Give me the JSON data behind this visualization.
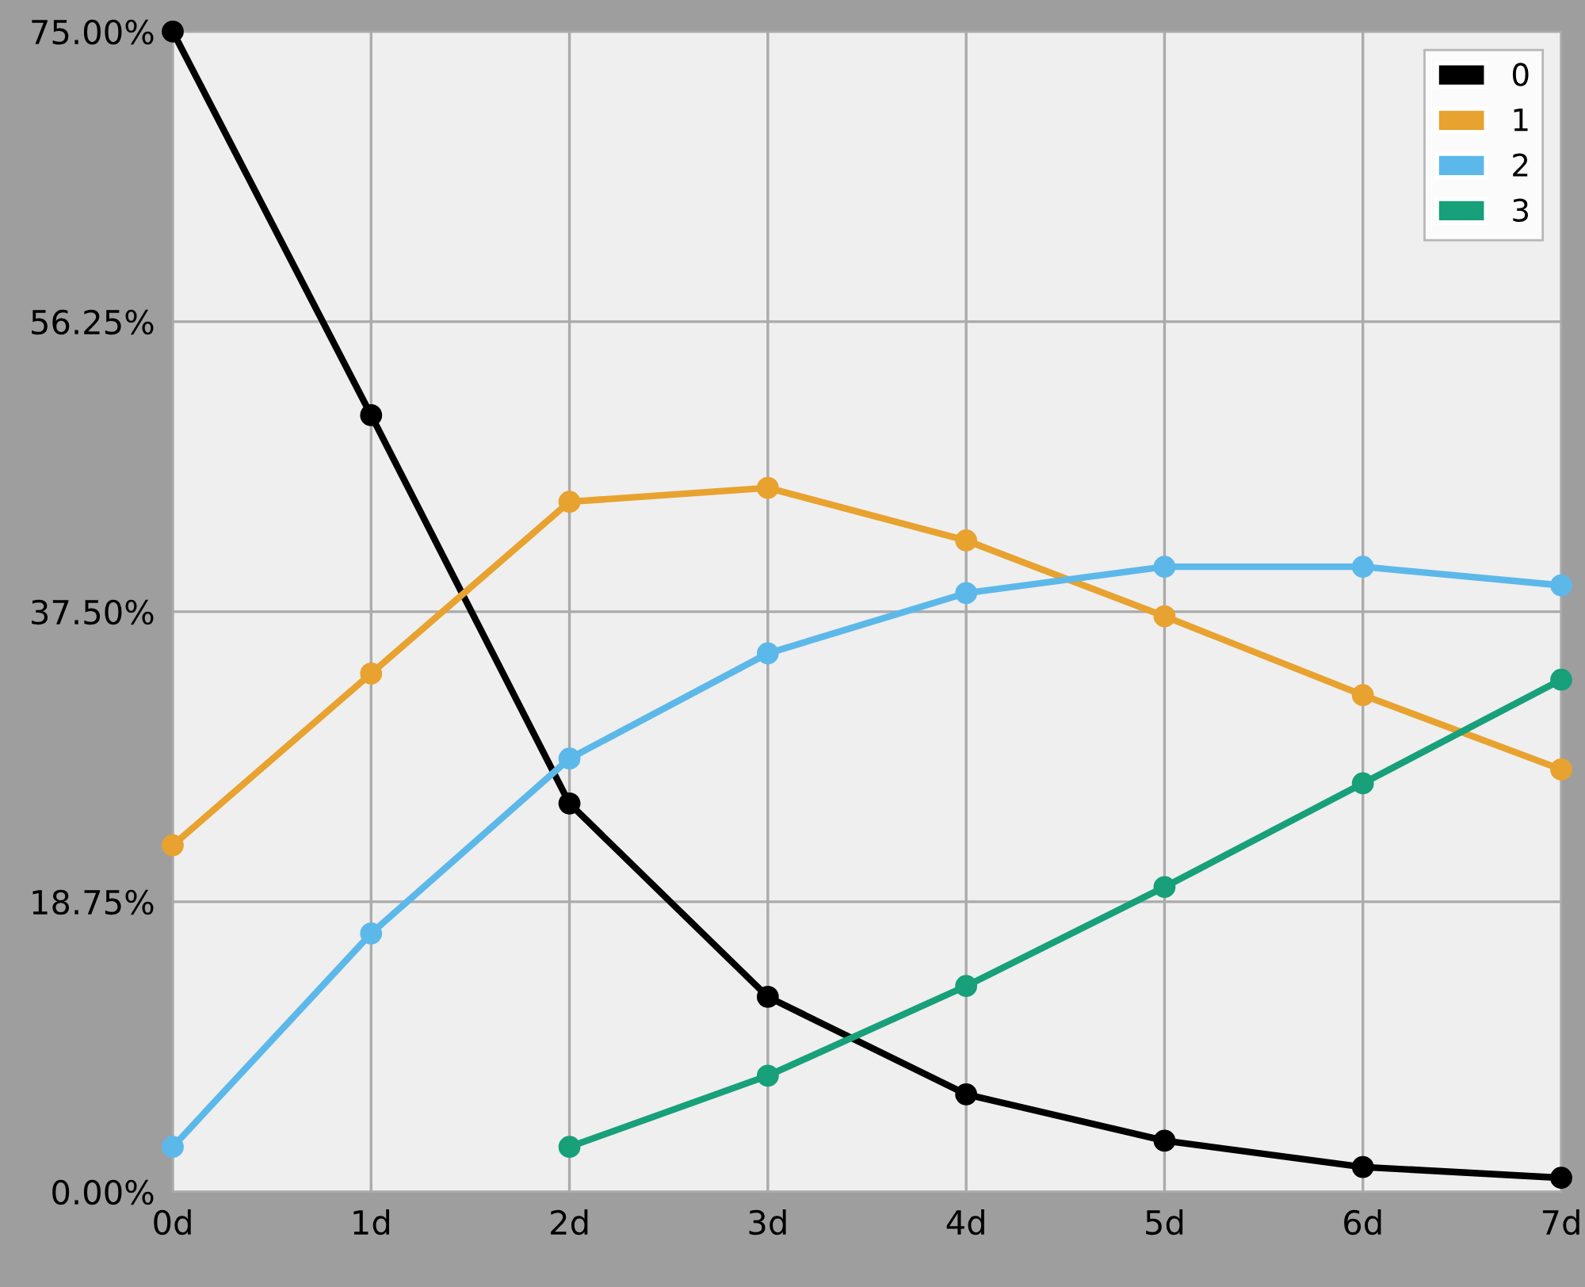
{
  "chart_data": {
    "type": "line",
    "categories": [
      "0d",
      "1d",
      "2d",
      "3d",
      "4d",
      "5d",
      "6d",
      "7d"
    ],
    "series": [
      {
        "name": "0",
        "color": "#000000",
        "values": [
          75,
          50.2,
          25.1,
          12.6,
          6.3,
          3.3,
          1.6,
          0.9
        ]
      },
      {
        "name": "1",
        "color": "#e8a22f",
        "values": [
          22.4,
          33.5,
          44.6,
          45.5,
          42.1,
          37.2,
          32.1,
          27.3
        ]
      },
      {
        "name": "2",
        "color": "#5db8ea",
        "values": [
          2.9,
          16.7,
          28.0,
          34.8,
          38.7,
          40.4,
          40.4,
          39.2
        ]
      },
      {
        "name": "3",
        "color": "#17a07a",
        "values": [
          null,
          null,
          2.9,
          7.5,
          13.3,
          19.7,
          26.4,
          33.1
        ]
      }
    ],
    "ylim": [
      0,
      75
    ],
    "yticks": [
      {
        "value": 0,
        "label": "0.00%"
      },
      {
        "value": 18.75,
        "label": "18.75%"
      },
      {
        "value": 37.5,
        "label": "37.50%"
      },
      {
        "value": 56.25,
        "label": "56.25%"
      },
      {
        "value": 75,
        "label": "75.00%"
      }
    ],
    "grid": true,
    "legend": "top right",
    "marker": "circle",
    "line_style": "solid"
  }
}
